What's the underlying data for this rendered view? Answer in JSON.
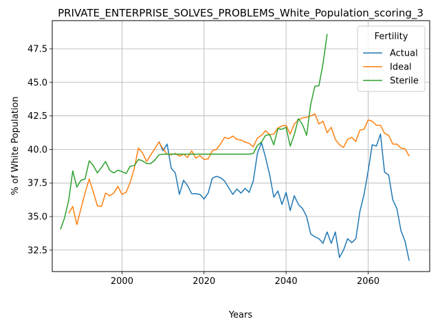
{
  "chart_data": {
    "type": "line",
    "title": "PRIVATE_ENTERPRISE_SOLVES_PROBLEMS_White_Population_scoring_3",
    "xlabel": "Years",
    "ylabel": "% of White Population",
    "xlim": [
      1983,
      2075
    ],
    "ylim": [
      30.9,
      49.6
    ],
    "xticks": [
      2000,
      2020,
      2040,
      2060
    ],
    "yticks": [
      32.5,
      35.0,
      37.5,
      40.0,
      42.5,
      45.0,
      47.5
    ],
    "ytick_labels": [
      "32.5",
      "35.0",
      "37.5",
      "40.0",
      "42.5",
      "45.0",
      "47.5"
    ],
    "grid": true,
    "legend": {
      "title": "Fertility",
      "position": "top-right"
    },
    "series": [
      {
        "name": "Actual",
        "color": "#1f77b4",
        "x": [
          2009,
          2010,
          2011,
          2012,
          2013,
          2014,
          2015,
          2016,
          2017,
          2018,
          2019,
          2020,
          2021,
          2022,
          2023,
          2024,
          2025,
          2026,
          2027,
          2028,
          2029,
          2030,
          2031,
          2032,
          2033,
          2034,
          2035,
          2036,
          2037,
          2038,
          2039,
          2040,
          2041,
          2042,
          2043,
          2044,
          2045,
          2046,
          2047,
          2048,
          2049,
          2050,
          2051,
          2052,
          2053,
          2054,
          2055,
          2056,
          2057,
          2058,
          2059,
          2060,
          2061,
          2062,
          2063,
          2064,
          2065,
          2066,
          2067,
          2068,
          2069,
          2070
        ],
        "y": [
          40.6,
          39.9,
          40.4,
          38.6,
          38.25,
          36.65,
          37.7,
          37.3,
          36.7,
          36.7,
          36.65,
          36.3,
          36.75,
          37.85,
          38.0,
          37.9,
          37.65,
          37.15,
          36.65,
          37.05,
          36.75,
          37.1,
          36.8,
          37.65,
          39.7,
          40.5,
          39.4,
          38.1,
          36.45,
          36.9,
          35.9,
          36.8,
          35.45,
          36.55,
          35.9,
          35.6,
          35.0,
          33.7,
          33.5,
          33.35,
          33.0,
          33.85,
          33.0,
          33.85,
          31.95,
          32.5,
          33.35,
          33.05,
          33.35,
          35.4,
          36.65,
          38.4,
          40.35,
          40.25,
          41.15,
          38.3,
          38.1,
          36.25,
          35.6,
          33.95,
          33.15,
          31.7
        ]
      },
      {
        "name": "Ideal",
        "color": "#ff7f0e",
        "x": [
          1987,
          1988,
          1989,
          1990,
          1991,
          1992,
          1993,
          1994,
          1995,
          1996,
          1997,
          1998,
          1999,
          2000,
          2001,
          2002,
          2003,
          2004,
          2005,
          2006,
          2007,
          2008,
          2009,
          2010,
          2011,
          2012,
          2013,
          2014,
          2015,
          2016,
          2017,
          2018,
          2019,
          2020,
          2021,
          2022,
          2023,
          2024,
          2025,
          2026,
          2027,
          2028,
          2029,
          2030,
          2031,
          2032,
          2033,
          2034,
          2035,
          2036,
          2037,
          2038,
          2039,
          2040,
          2041,
          2042,
          2043,
          2044,
          2045,
          2046,
          2047,
          2048,
          2049,
          2050,
          2051,
          2052,
          2053,
          2054,
          2055,
          2056,
          2057,
          2058,
          2059,
          2060,
          2061,
          2062,
          2063,
          2064,
          2065,
          2066,
          2067,
          2068,
          2069,
          2070
        ],
        "y": [
          35.25,
          35.75,
          34.4,
          35.6,
          36.75,
          37.8,
          36.85,
          35.8,
          35.75,
          36.75,
          36.55,
          36.75,
          37.25,
          36.65,
          36.8,
          37.55,
          38.6,
          40.1,
          39.75,
          39.1,
          39.6,
          40.05,
          40.55,
          40.05,
          39.65,
          39.6,
          39.7,
          39.5,
          39.65,
          39.4,
          39.9,
          39.35,
          39.55,
          39.25,
          39.3,
          39.9,
          40.0,
          40.4,
          40.9,
          40.8,
          41.0,
          40.75,
          40.7,
          40.55,
          40.45,
          40.2,
          40.85,
          41.05,
          41.4,
          41.1,
          41.15,
          41.6,
          41.75,
          41.8,
          41.15,
          41.9,
          42.2,
          42.35,
          42.4,
          42.5,
          42.65,
          41.9,
          42.1,
          41.25,
          41.65,
          40.75,
          40.35,
          40.15,
          40.75,
          40.9,
          40.6,
          41.45,
          41.5,
          42.2,
          42.1,
          41.8,
          41.8,
          41.2,
          41.05,
          40.4,
          40.4,
          40.1,
          40.05,
          39.5
        ]
      },
      {
        "name": "Sterile",
        "color": "#2ca02c",
        "x": [
          1985,
          1986,
          1987,
          1988,
          1989,
          1990,
          1991,
          1992,
          1993,
          1994,
          1995,
          1996,
          1997,
          1998,
          1999,
          2000,
          2001,
          2002,
          2003,
          2004,
          2005,
          2006,
          2007,
          2008,
          2009,
          2010,
          2011,
          2012,
          2013,
          2014,
          2015,
          2016,
          2017,
          2018,
          2019,
          2020,
          2021,
          2022,
          2023,
          2024,
          2025,
          2026,
          2027,
          2028,
          2029,
          2030,
          2031,
          2032,
          2033,
          2034,
          2035,
          2036,
          2037,
          2038,
          2039,
          2040,
          2041,
          2042,
          2043,
          2044,
          2045,
          2046,
          2047,
          2048,
          2049,
          2050
        ],
        "y": [
          34.05,
          34.9,
          36.2,
          38.4,
          37.2,
          37.7,
          37.8,
          39.15,
          38.8,
          38.25,
          38.65,
          39.1,
          38.45,
          38.25,
          38.45,
          38.35,
          38.2,
          38.75,
          38.8,
          39.25,
          39.15,
          38.95,
          38.95,
          39.2,
          39.6,
          39.65,
          39.65,
          39.65,
          39.65,
          39.65,
          39.65,
          39.65,
          39.65,
          39.65,
          39.65,
          39.65,
          39.65,
          39.65,
          39.65,
          39.65,
          39.65,
          39.65,
          39.65,
          39.65,
          39.65,
          39.65,
          39.65,
          39.7,
          40.3,
          40.55,
          41.05,
          41.1,
          40.35,
          41.55,
          41.5,
          41.65,
          40.25,
          41.1,
          42.3,
          41.85,
          41.05,
          43.35,
          44.7,
          44.75,
          46.4,
          48.6
        ]
      }
    ]
  }
}
